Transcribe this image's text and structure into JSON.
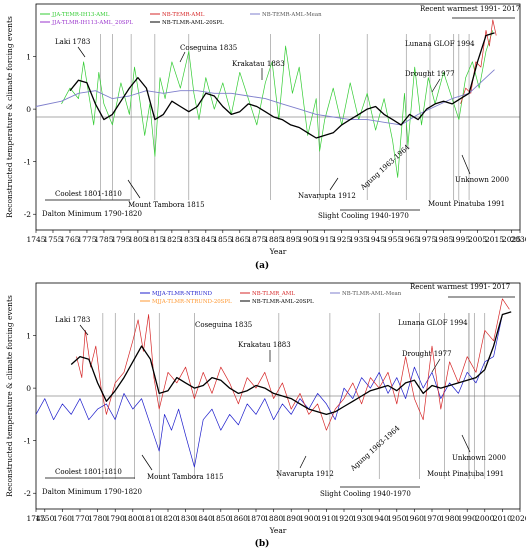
{
  "chart_data": [
    {
      "type": "line",
      "panel_label": "(a)",
      "xlabel": "Year",
      "ylabel": "Reconstructed temperature  & climate forcing events",
      "xlim": [
        1745,
        2030
      ],
      "ylim": [
        -2.3,
        2.0
      ],
      "x_ticks": [
        "1745",
        "1755",
        "1765",
        "1775",
        "1785",
        "1795",
        "1805",
        "1815",
        "1825",
        "1835",
        "1845",
        "1855",
        "1865",
        "1875",
        "1885",
        "1895",
        "1905",
        "1915",
        "1925",
        "1935",
        "1945",
        "1955",
        "1965",
        "1975",
        "1985",
        "1995",
        "2005",
        "2015",
        "2025",
        "2030"
      ],
      "y_ticks": [
        "-2",
        "-1",
        "0",
        "1"
      ],
      "legend": [
        {
          "name": "JJA-TEMR-IH13-AML",
          "color": "#33cc33"
        },
        {
          "name": "NB-TEMR-AML",
          "color": "#d62728"
        },
        {
          "name": "NB-TEMR-AML-Mean",
          "color": "#7f7fcc"
        },
        {
          "name": "JJA-TLMR-IH113-AML_20SPL",
          "color": "#9933cc"
        },
        {
          "name": "NB-TLMR-AML-20SPL",
          "color": "#000000"
        }
      ],
      "series": [
        {
          "name": "JJA-TEMR-IH13-AML",
          "color": "#33cc33",
          "x": [
            1760,
            1765,
            1770,
            1773,
            1776,
            1779,
            1782,
            1785,
            1790,
            1795,
            1800,
            1803,
            1806,
            1809,
            1812,
            1815,
            1818,
            1821,
            1825,
            1830,
            1835,
            1838,
            1841,
            1845,
            1850,
            1855,
            1860,
            1865,
            1870,
            1875,
            1880,
            1884,
            1888,
            1892,
            1896,
            1900,
            1905,
            1910,
            1912,
            1915,
            1920,
            1925,
            1930,
            1935,
            1940,
            1945,
            1950,
            1955,
            1958,
            1962,
            1964,
            1968,
            1972,
            1976,
            1980,
            1985,
            1990,
            1994,
            1998,
            2002,
            2006,
            2010,
            2014
          ],
          "y": [
            0.1,
            0.4,
            0.2,
            0.9,
            0.3,
            -0.3,
            0.7,
            0.1,
            -0.3,
            0.5,
            -0.1,
            0.8,
            0.2,
            -0.5,
            0.1,
            -0.9,
            0.6,
            0.2,
            0.9,
            0.4,
            1.1,
            0.3,
            -0.2,
            0.6,
            0.0,
            0.5,
            -0.1,
            0.7,
            0.2,
            -0.3,
            0.5,
            0.9,
            -0.2,
            1.2,
            0.3,
            0.8,
            -0.5,
            0.2,
            -0.8,
            -0.2,
            0.4,
            -0.3,
            0.5,
            -0.2,
            0.3,
            -0.4,
            0.2,
            -0.6,
            -1.3,
            0.3,
            -0.7,
            0.8,
            -0.3,
            0.6,
            0.1,
            0.7,
            0.2,
            -0.2,
            0.6,
            0.9,
            0.4,
            1.1,
            1.5
          ]
        },
        {
          "name": "NB-TEMR-AML",
          "color": "#d62728",
          "x": [
            1995,
            1998,
            2001,
            2004,
            2007,
            2010,
            2012,
            2014,
            2016
          ],
          "y": [
            0.1,
            0.4,
            0.3,
            0.9,
            0.8,
            1.5,
            1.2,
            1.7,
            1.4
          ]
        },
        {
          "name": "NB-TEMR-AML-Mean",
          "color": "#7f7fcc",
          "x": [
            1745,
            1760,
            1770,
            1780,
            1790,
            1800,
            1810,
            1820,
            1830,
            1840,
            1850,
            1860,
            1870,
            1880,
            1890,
            1900,
            1910,
            1920,
            1930,
            1940,
            1950,
            1960,
            1970,
            1980,
            1990,
            2000,
            2010,
            2015
          ],
          "y": [
            0.05,
            0.15,
            0.3,
            0.35,
            0.2,
            0.25,
            0.35,
            0.3,
            0.35,
            0.35,
            0.3,
            0.3,
            0.25,
            0.2,
            0.1,
            0.0,
            -0.1,
            -0.15,
            -0.2,
            -0.2,
            -0.25,
            -0.3,
            -0.1,
            0.05,
            0.2,
            0.3,
            0.6,
            0.75
          ]
        },
        {
          "name": "NB-TLMR-AML-20SPL",
          "color": "#000000",
          "x": [
            1765,
            1770,
            1775,
            1780,
            1785,
            1790,
            1795,
            1800,
            1805,
            1810,
            1815,
            1820,
            1825,
            1830,
            1835,
            1840,
            1845,
            1850,
            1855,
            1860,
            1865,
            1870,
            1875,
            1880,
            1885,
            1890,
            1895,
            1900,
            1905,
            1910,
            1915,
            1920,
            1925,
            1930,
            1935,
            1940,
            1945,
            1950,
            1955,
            1960,
            1965,
            1970,
            1975,
            1980,
            1985,
            1990,
            1995,
            2000,
            2005,
            2010,
            2015
          ],
          "y": [
            0.35,
            0.55,
            0.5,
            0.1,
            -0.2,
            -0.1,
            0.15,
            0.4,
            0.6,
            0.4,
            -0.2,
            -0.1,
            0.15,
            0.05,
            -0.05,
            0.05,
            0.3,
            0.25,
            0.05,
            -0.1,
            -0.05,
            0.1,
            0.05,
            -0.05,
            -0.15,
            -0.2,
            -0.3,
            -0.35,
            -0.45,
            -0.55,
            -0.5,
            -0.45,
            -0.3,
            -0.2,
            -0.1,
            0.0,
            0.05,
            -0.1,
            -0.2,
            -0.3,
            -0.1,
            -0.2,
            0.0,
            0.1,
            0.15,
            0.1,
            0.2,
            0.3,
            0.9,
            1.4,
            1.45
          ]
        }
      ]
    },
    {
      "type": "line",
      "panel_label": "(b)",
      "xlabel": "Year",
      "ylabel": "Reconstructed temperature  & climate forcing events",
      "xlim": [
        1745,
        2020
      ],
      "ylim": [
        -2.3,
        2.0
      ],
      "x_ticks": [
        "1745",
        "1750",
        "1760",
        "1770",
        "1780",
        "1790",
        "1800",
        "1810",
        "1820",
        "1830",
        "1840",
        "1850",
        "1860",
        "1870",
        "1880",
        "1890",
        "1900",
        "1910",
        "1920",
        "1930",
        "1940",
        "1950",
        "1960",
        "1970",
        "1980",
        "1990",
        "2000",
        "2010",
        "2020"
      ],
      "y_ticks": [
        "-2",
        "-1",
        "0",
        "1"
      ],
      "legend": [
        {
          "name": "MJJA-TLMR-NTRUND",
          "color": "#1f1fcc"
        },
        {
          "name": "NB-TLMR_AML",
          "color": "#d62728"
        },
        {
          "name": "NB-TLMR-AML-Mean",
          "color": "#7f7fcc"
        },
        {
          "name": "MJJA-TLMR-NTRUND-20SPL",
          "color": "#ff9933"
        },
        {
          "name": "NB-TLMR-AML-20SPL",
          "color": "#000000"
        }
      ],
      "series": [
        {
          "name": "MJJA-TLMR-NTRUND",
          "color": "#1f1fcc",
          "x": [
            1745,
            1750,
            1755,
            1760,
            1765,
            1770,
            1775,
            1780,
            1785,
            1790,
            1795,
            1800,
            1805,
            1810,
            1815,
            1818,
            1822,
            1826,
            1830,
            1835,
            1840,
            1845,
            1850,
            1855,
            1860,
            1865,
            1870,
            1875,
            1880,
            1885,
            1890,
            1895,
            1900,
            1905,
            1910,
            1915,
            1920,
            1925,
            1930,
            1935,
            1940,
            1945,
            1950,
            1955,
            1960,
            1965,
            1970,
            1975,
            1980,
            1985,
            1990,
            1995,
            2000,
            2005,
            2010
          ],
          "y": [
            -0.5,
            -0.2,
            -0.6,
            -0.3,
            -0.5,
            -0.2,
            -0.6,
            -0.4,
            -0.3,
            -0.6,
            -0.1,
            -0.4,
            -0.2,
            -0.7,
            -1.2,
            -0.5,
            -0.8,
            -0.4,
            -0.9,
            -1.5,
            -0.6,
            -0.4,
            -0.8,
            -0.5,
            -0.7,
            -0.3,
            -0.5,
            -0.2,
            -0.6,
            -0.3,
            -0.5,
            -0.2,
            -0.4,
            -0.1,
            -0.3,
            -0.6,
            0.0,
            -0.2,
            0.2,
            0.0,
            0.3,
            -0.1,
            0.2,
            -0.2,
            0.4,
            0.0,
            0.3,
            -0.2,
            0.1,
            -0.1,
            0.3,
            0.1,
            0.5,
            0.6,
            1.4
          ]
        },
        {
          "name": "NB-TLMR_AML",
          "color": "#d62728",
          "x": [
            1768,
            1771,
            1773,
            1776,
            1779,
            1782,
            1785,
            1790,
            1795,
            1800,
            1803,
            1806,
            1809,
            1812,
            1815,
            1820,
            1825,
            1830,
            1835,
            1840,
            1845,
            1850,
            1855,
            1860,
            1865,
            1870,
            1875,
            1880,
            1885,
            1890,
            1895,
            1900,
            1905,
            1910,
            1915,
            1920,
            1925,
            1930,
            1935,
            1940,
            1945,
            1950,
            1955,
            1960,
            1965,
            1970,
            1975,
            1980,
            1985,
            1990,
            1995,
            2000,
            2005,
            2010,
            2014
          ],
          "y": [
            0.6,
            0.2,
            1.1,
            0.4,
            0.8,
            0.0,
            -0.5,
            0.1,
            0.3,
            0.9,
            1.3,
            0.7,
            1.4,
            0.2,
            -0.4,
            0.3,
            0.1,
            0.4,
            -0.2,
            0.3,
            -0.1,
            0.4,
            0.1,
            -0.3,
            0.2,
            0.0,
            0.3,
            -0.2,
            0.1,
            -0.4,
            -0.1,
            -0.5,
            -0.3,
            -0.8,
            -0.4,
            -0.2,
            0.1,
            -0.3,
            0.2,
            0.0,
            0.3,
            -0.3,
            0.6,
            -0.2,
            -0.6,
            0.8,
            -0.4,
            0.5,
            0.1,
            0.6,
            0.3,
            1.1,
            0.9,
            1.7,
            1.5
          ]
        },
        {
          "name": "NB-TLMR-AML-20SPL",
          "color": "#000000",
          "x": [
            1765,
            1770,
            1775,
            1780,
            1785,
            1790,
            1795,
            1800,
            1805,
            1810,
            1815,
            1820,
            1825,
            1830,
            1835,
            1840,
            1845,
            1850,
            1855,
            1860,
            1865,
            1870,
            1875,
            1880,
            1885,
            1890,
            1895,
            1900,
            1905,
            1910,
            1915,
            1920,
            1925,
            1930,
            1935,
            1940,
            1945,
            1950,
            1955,
            1960,
            1965,
            1970,
            1975,
            1980,
            1985,
            1990,
            1995,
            2000,
            2005,
            2010,
            2015
          ],
          "y": [
            0.45,
            0.6,
            0.55,
            0.1,
            -0.25,
            -0.05,
            0.2,
            0.5,
            0.8,
            0.55,
            -0.1,
            -0.05,
            0.2,
            0.1,
            0.0,
            0.05,
            0.2,
            0.15,
            0.0,
            -0.1,
            -0.05,
            0.05,
            0.0,
            -0.1,
            -0.15,
            -0.2,
            -0.3,
            -0.4,
            -0.45,
            -0.5,
            -0.45,
            -0.35,
            -0.25,
            -0.15,
            -0.05,
            0.0,
            0.05,
            -0.05,
            0.1,
            0.15,
            -0.1,
            0.05,
            0.0,
            0.05,
            0.1,
            0.15,
            0.2,
            0.35,
            0.8,
            1.4,
            1.45
          ]
        }
      ]
    }
  ],
  "annotations_a": [
    {
      "text": "Laki 1783",
      "year": 1783
    },
    {
      "text": "Coseguina 1835",
      "year": 1835
    },
    {
      "text": "Krakatau 1883",
      "year": 1883
    },
    {
      "text": "Lunana GLOF 1994",
      "year": 1994
    },
    {
      "text": "Drought 1977",
      "year": 1977
    },
    {
      "text": "Recent warmest 1991- 2017",
      "year": 1991
    },
    {
      "text": "Unknown 2000",
      "year": 2000
    },
    {
      "text": "Agung 1963-1964",
      "year": 1963
    },
    {
      "text": "Navarupta 1912",
      "year": 1912
    },
    {
      "text": "Mount Pinatuba 1991",
      "year": 1991
    },
    {
      "text": "Coolest 1801-1810",
      "year": 1801
    },
    {
      "text": "Mount Tambora 1815",
      "year": 1815
    },
    {
      "text": "Dalton Minimum 1790-1820",
      "year": 1790
    },
    {
      "text": "Slight Cooling 1940-1970",
      "year": 1940
    }
  ],
  "annotations_b": [
    {
      "text": "Laki 1783",
      "year": 1783
    },
    {
      "text": "Coseguina 1835",
      "year": 1835
    },
    {
      "text": "Krakatau 1883",
      "year": 1883
    },
    {
      "text": "Lunana GLOF 1994",
      "year": 1994
    },
    {
      "text": "Drought 1977",
      "year": 1977
    },
    {
      "text": "Recent warmest 1991- 2017",
      "year": 1991
    },
    {
      "text": "Unknown 2000",
      "year": 2000
    },
    {
      "text": "Agung 1963-1964",
      "year": 1963
    },
    {
      "text": "Navarupta 1912",
      "year": 1912
    },
    {
      "text": "Mount Pinatuba 1991",
      "year": 1991
    },
    {
      "text": "Coolest 1801-1810",
      "year": 1801
    },
    {
      "text": "Mount Tambora 1815",
      "year": 1815
    },
    {
      "text": "Dalton Minimum 1790-1820",
      "year": 1790
    },
    {
      "text": "Slight Cooling 1940-1970",
      "year": 1940
    }
  ]
}
